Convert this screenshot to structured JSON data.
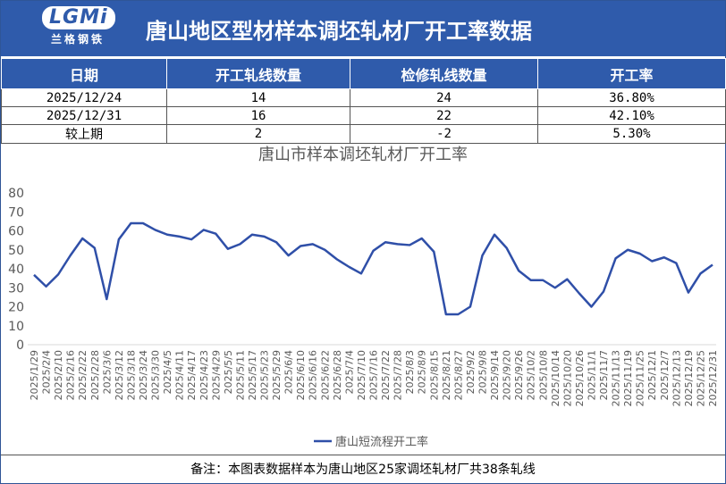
{
  "header": {
    "logo_text": "LGMi",
    "logo_sub": "兰格钢铁",
    "title": "唐山地区型材样本调坯轧材厂开工率数据"
  },
  "table": {
    "columns": [
      "日期",
      "开工轧线数量",
      "检修轧线数量",
      "开工率"
    ],
    "rows": [
      [
        "2025/12/24",
        "14",
        "24",
        "36.80%"
      ],
      [
        "2025/12/31",
        "16",
        "22",
        "42.10%"
      ],
      [
        "较上期",
        "2",
        "-2",
        "5.30%"
      ]
    ]
  },
  "chart_data": {
    "type": "line",
    "title": "唐山市样本调坯轧材厂开工率",
    "categories": [
      "2025/1/29",
      "2025/2/4",
      "2025/2/10",
      "2025/2/16",
      "2025/2/22",
      "2025/2/28",
      "2025/3/6",
      "2025/3/12",
      "2025/3/18",
      "2025/3/24",
      "2025/3/30",
      "2025/4/5",
      "2025/4/11",
      "2025/4/17",
      "2025/4/23",
      "2025/4/29",
      "2025/5/5",
      "2025/5/11",
      "2025/5/17",
      "2025/5/23",
      "2025/5/29",
      "2025/6/4",
      "2025/6/10",
      "2025/6/16",
      "2025/6/22",
      "2025/6/28",
      "2025/7/4",
      "2025/7/10",
      "2025/7/16",
      "2025/7/22",
      "2025/7/28",
      "2025/8/3",
      "2025/8/9",
      "2025/8/15",
      "2025/8/21",
      "2025/8/27",
      "2025/9/2",
      "2025/9/8",
      "2025/9/14",
      "2025/9/20",
      "2025/9/26",
      "2025/10/2",
      "2025/10/8",
      "2025/10/14",
      "2025/10/20",
      "2025/10/26",
      "2025/11/1",
      "2025/11/7",
      "2025/11/13",
      "2025/11/19",
      "2025/11/25",
      "2025/12/1",
      "2025/12/7",
      "2025/12/13",
      "2025/12/19",
      "2025/12/25",
      "2025/12/31"
    ],
    "series": [
      {
        "name": "唐山短流程开工率",
        "color": "#2f4fa8",
        "values": [
          36.8,
          30.7,
          37,
          47,
          56,
          51,
          24,
          55.5,
          64,
          64,
          60.5,
          58,
          57,
          55.5,
          60.5,
          58.5,
          50.5,
          53,
          58,
          57,
          54,
          47,
          52,
          53,
          50,
          45,
          41,
          37.5,
          49.5,
          54,
          53,
          52.5,
          56,
          49,
          16,
          16,
          20,
          47,
          58,
          51,
          39,
          34,
          34,
          30,
          34.5,
          27,
          20,
          28,
          45.5,
          50,
          48,
          44,
          46,
          43,
          27.5,
          37.5,
          42.1
        ]
      }
    ],
    "ylim": [
      0,
      80
    ],
    "yticks": [
      0,
      10,
      20,
      30,
      40,
      50,
      60,
      70,
      80
    ],
    "grid": false,
    "legend": "bottom"
  },
  "footer": "备注：本图表数据样本为唐山地区25家调坯轧材厂共38条轧线"
}
